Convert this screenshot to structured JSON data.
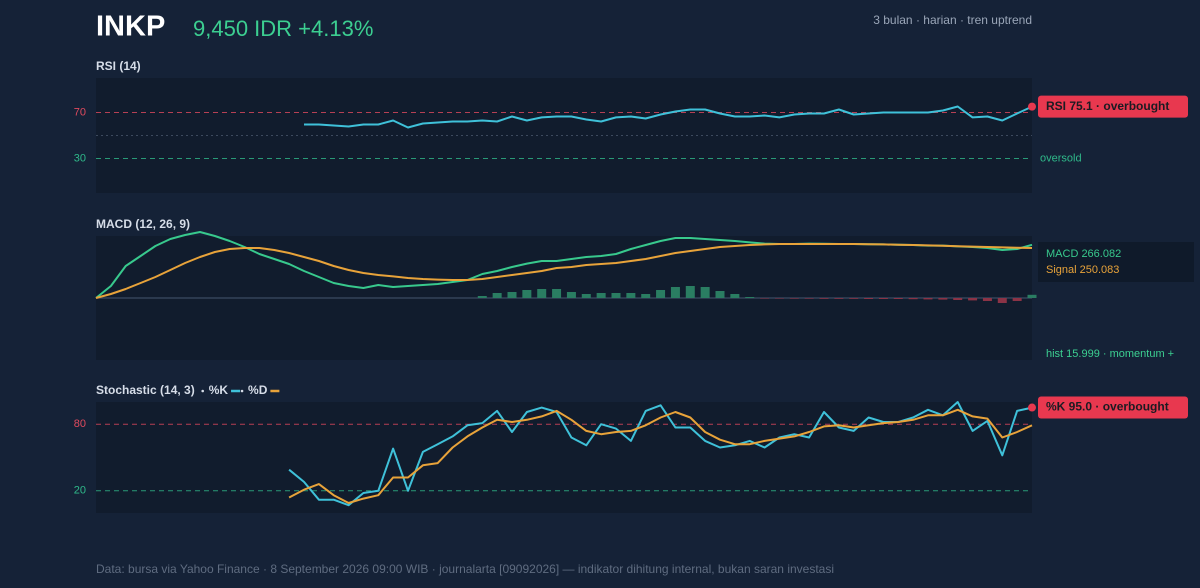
{
  "header": {
    "title": "INKP",
    "price": "9,450 IDR +4.13%",
    "subtitle": "3 bulan · harian · tren uptrend"
  },
  "chart_data": [
    {
      "type": "line",
      "title": "RSI (14)",
      "color": "#3fc1d9",
      "values": [
        null,
        null,
        null,
        null,
        null,
        null,
        null,
        null,
        null,
        null,
        null,
        null,
        null,
        null,
        59.6,
        59.6,
        58.7,
        57.8,
        59.6,
        59.6,
        63.0,
        57.0,
        60.4,
        61.3,
        62.2,
        62.2,
        63.0,
        62.2,
        66.5,
        63.0,
        65.7,
        66.5,
        66.5,
        63.9,
        62.2,
        65.7,
        66.5,
        64.8,
        68.3,
        70.9,
        72.6,
        72.6,
        69.1,
        66.5,
        66.5,
        67.4,
        65.7,
        68.3,
        69.1,
        69.1,
        72.6,
        68.3,
        69.1,
        70.0,
        70.0,
        70.0,
        70.0,
        71.7,
        75.2,
        65.7,
        66.5,
        63.0,
        69.1,
        75.1
      ],
      "ylim": [
        0,
        100
      ],
      "yticks": [
        30,
        70
      ],
      "tick_colors": [
        "#2fb98a",
        "#e04a5e"
      ],
      "midline": 50,
      "annotation": "oversold",
      "badge": "RSI 75.1 · overbought",
      "badge_color": "#e8384f"
    },
    {
      "type": "line",
      "title": "MACD (12, 26, 9)",
      "series": [
        {
          "color": "#38c98d",
          "values": [
            0,
            60,
            160,
            210,
            260,
            295,
            315,
            330,
            310,
            285,
            255,
            220,
            195,
            170,
            135,
            105,
            75,
            60,
            50,
            65,
            55,
            60,
            65,
            70,
            80,
            90,
            120,
            135,
            155,
            172,
            185,
            185,
            195,
            205,
            210,
            220,
            245,
            265,
            285,
            300,
            300,
            295,
            290,
            285,
            278,
            272,
            270,
            270,
            272,
            271,
            270,
            270,
            269,
            268,
            266,
            265,
            262,
            262,
            258,
            255,
            250,
            240,
            245,
            266.082
          ]
        },
        {
          "color": "#e8a33a",
          "values": [
            0,
            20,
            45,
            75,
            105,
            140,
            175,
            205,
            230,
            245,
            250,
            250,
            240,
            225,
            205,
            185,
            160,
            140,
            125,
            115,
            108,
            100,
            95,
            92,
            90,
            90,
            95,
            105,
            115,
            125,
            135,
            150,
            155,
            165,
            170,
            175,
            185,
            195,
            210,
            225,
            235,
            245,
            255,
            260,
            265,
            268,
            270,
            270,
            270,
            270,
            270,
            270,
            269,
            268,
            266,
            265,
            263,
            261,
            259,
            257,
            255,
            253,
            251,
            250.083
          ]
        },
        {
          "kind": "bar",
          "color": "#2a7d62",
          "negative_color": "#8b3346",
          "values": [
            null,
            null,
            null,
            null,
            null,
            null,
            null,
            null,
            null,
            null,
            null,
            null,
            null,
            null,
            null,
            null,
            null,
            null,
            null,
            null,
            null,
            null,
            null,
            null,
            null,
            null,
            10,
            25,
            30,
            40,
            45,
            45,
            30,
            20,
            25,
            25,
            25,
            20,
            40,
            55,
            60,
            55,
            35,
            20,
            5,
            -2,
            -2,
            -3,
            -3,
            -4,
            -4,
            -4,
            -5,
            -5,
            -5,
            -6,
            -7,
            -8,
            -10,
            -12,
            -15,
            -25,
            -15,
            15.999
          ]
        }
      ],
      "ylim": [
        -310,
        310
      ],
      "legend_box": [
        "MACD 266.082",
        "Signal 250.083"
      ],
      "note": "hist 15.999 · momentum +"
    },
    {
      "type": "line",
      "title": "Stochastic (14, 3)",
      "series": [
        {
          "name": "%K",
          "color": "#3fc1d9",
          "values": [
            null,
            null,
            null,
            null,
            null,
            null,
            null,
            null,
            null,
            null,
            null,
            null,
            null,
            39,
            28,
            12,
            12,
            7,
            18,
            20,
            58,
            20,
            55,
            62,
            69,
            79,
            81,
            92,
            73,
            91,
            95,
            91,
            68,
            61,
            80,
            76,
            65,
            92,
            97,
            77,
            77,
            65,
            59,
            61,
            65,
            59,
            68,
            71,
            68,
            91,
            77,
            74,
            86,
            82,
            82,
            86,
            93,
            88,
            100,
            74,
            83,
            52,
            92,
            95.0
          ]
        },
        {
          "name": "%D",
          "color": "#e8a33a",
          "values": [
            null,
            null,
            null,
            null,
            null,
            null,
            null,
            null,
            null,
            null,
            null,
            null,
            null,
            14,
            21,
            26,
            16,
            9,
            13,
            16,
            32,
            32,
            43,
            45,
            59,
            69,
            77,
            84,
            82,
            84,
            87,
            92,
            84,
            74,
            71,
            73,
            74,
            79,
            86,
            91,
            86,
            73,
            66,
            62,
            62,
            65,
            67,
            69,
            73,
            78,
            79,
            77,
            79,
            81,
            82,
            84,
            88,
            88,
            93,
            87,
            85,
            68,
            73,
            79
          ]
        }
      ],
      "ylim": [
        0,
        100
      ],
      "yticks": [
        20,
        80
      ],
      "tick_colors": [
        "#2fb98a",
        "#e04a5e"
      ],
      "badge": "%K 95.0 · overbought",
      "badge_color": "#e8384f"
    }
  ],
  "footer": "Data: bursa via Yahoo Finance · 8 September 2026 09:00 WIB · journalarta [09092026] — indikator dihitung internal, bukan saran investasi"
}
